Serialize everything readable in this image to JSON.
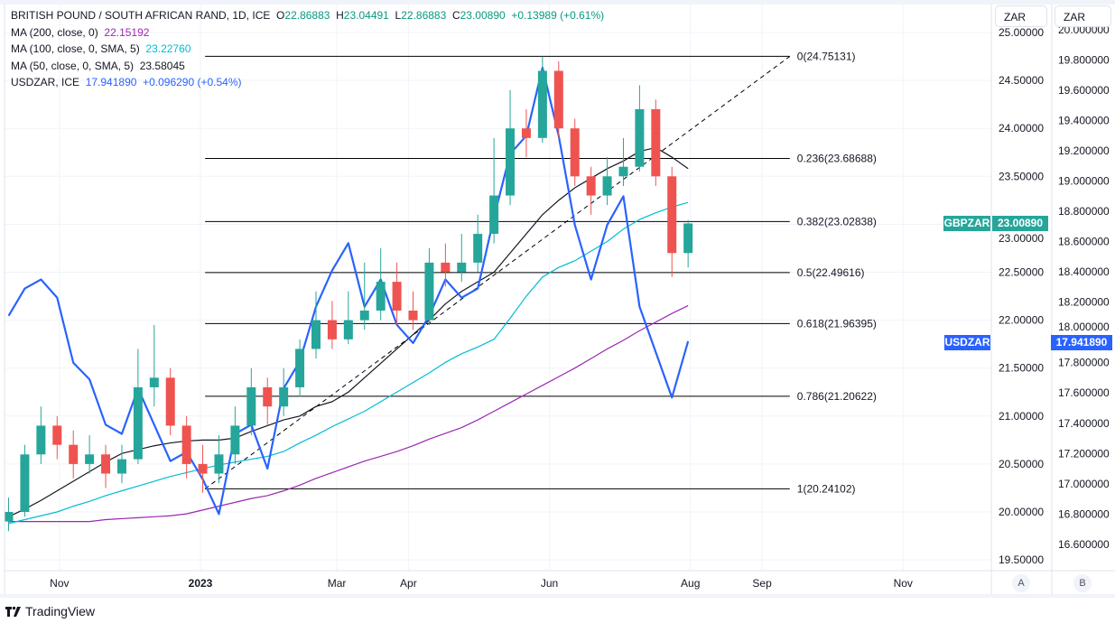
{
  "legend": {
    "symbol": "BRITISH POUND / SOUTH AFRICAN RAND, 1D, ICE",
    "open_label": "O",
    "open": "22.86883",
    "high_label": "H",
    "high": "23.04491",
    "low_label": "L",
    "low": "22.86883",
    "close_label": "C",
    "close": "23.00890",
    "change": "+0.13989 (+0.61%)",
    "ma200_label": "MA (200, close, 0)",
    "ma200_value": "22.15192",
    "ma100_label": "MA (100, close, 0, SMA, 5)",
    "ma100_value": "23.22760",
    "ma50_label": "MA (50, close, 0, SMA, 5)",
    "ma50_value": "23.58045",
    "usdzar_label": "USDZAR, ICE",
    "usdzar_value": "17.941890",
    "usdzar_change": "+0.096290 (+0.54%)"
  },
  "axes": {
    "left_unit": "ZAR",
    "right_unit": "ZAR",
    "left_scale_button": "A",
    "right_scale_button": "B",
    "gbpzar_badge": "GBPZAR",
    "gbpzar_price": "23.00890",
    "usdzar_badge": "USDZAR",
    "usdzar_price": "17.941890"
  },
  "brand": "TradingView",
  "colors": {
    "up": "#26a69a",
    "down": "#ef5350",
    "ma200": "#9c27b0",
    "ma100": "#00bcd4",
    "ma50": "#131722",
    "usdzar": "#2962ff",
    "fib": "#000000"
  },
  "chart_data": {
    "type": "candlestick+line",
    "primary_axis": {
      "ticks": [
        "25.00000",
        "24.50000",
        "24.00000",
        "23.50000",
        "23.00000",
        "22.50000",
        "22.00000",
        "21.50000",
        "21.00000",
        "20.50000",
        "20.00000",
        "19.50000"
      ],
      "range": [
        19.35,
        25.05
      ]
    },
    "secondary_axis": {
      "ticks": [
        "20.000000",
        "19.800000",
        "19.600000",
        "19.400000",
        "19.200000",
        "19.000000",
        "18.800000",
        "18.600000",
        "18.400000",
        "18.200000",
        "18.000000",
        "17.800000",
        "17.600000",
        "17.400000",
        "17.200000",
        "17.000000",
        "16.800000",
        "16.600000"
      ],
      "range": [
        16.44,
        20.03
      ]
    },
    "x_ticks": [
      {
        "date": "2022-11-01",
        "label": "Nov"
      },
      {
        "date": "2023-01-01",
        "label": "2023"
      },
      {
        "date": "2023-03-01",
        "label": "Mar"
      },
      {
        "date": "2023-04-01",
        "label": "Apr"
      },
      {
        "date": "2023-06-01",
        "label": "Jun"
      },
      {
        "date": "2023-08-01",
        "label": "Aug"
      },
      {
        "date": "2023-09-01",
        "label": "Sep"
      },
      {
        "date": "2023-11-01",
        "label": "Nov"
      }
    ],
    "x_range": [
      "2022-10-07",
      "2023-12-13"
    ],
    "grid": true,
    "dates": [
      "2022-10-10",
      "2022-10-17",
      "2022-10-24",
      "2022-10-31",
      "2022-11-07",
      "2022-11-14",
      "2022-11-21",
      "2022-11-28",
      "2022-12-05",
      "2022-12-12",
      "2022-12-19",
      "2022-12-26",
      "2023-01-02",
      "2023-01-09",
      "2023-01-16",
      "2023-01-23",
      "2023-01-30",
      "2023-02-06",
      "2023-02-13",
      "2023-02-20",
      "2023-02-27",
      "2023-03-06",
      "2023-03-13",
      "2023-03-20",
      "2023-03-27",
      "2023-04-03",
      "2023-04-10",
      "2023-04-17",
      "2023-04-24",
      "2023-05-01",
      "2023-05-08",
      "2023-05-15",
      "2023-05-22",
      "2023-05-29",
      "2023-06-05",
      "2023-06-12",
      "2023-06-19",
      "2023-06-26",
      "2023-07-03",
      "2023-07-10",
      "2023-07-17",
      "2023-07-24",
      "2023-07-31"
    ],
    "gbpzar_ohlc": [
      [
        19.9,
        20.15,
        19.8,
        20.0
      ],
      [
        20.0,
        20.7,
        19.95,
        20.6
      ],
      [
        20.6,
        21.1,
        20.5,
        20.9
      ],
      [
        20.9,
        21.0,
        20.55,
        20.7
      ],
      [
        20.7,
        20.85,
        20.35,
        20.5
      ],
      [
        20.5,
        20.8,
        20.4,
        20.6
      ],
      [
        20.6,
        20.7,
        20.25,
        20.4
      ],
      [
        20.4,
        20.7,
        20.3,
        20.55
      ],
      [
        20.55,
        21.7,
        20.5,
        21.3
      ],
      [
        21.3,
        21.95,
        21.1,
        21.4
      ],
      [
        21.4,
        21.5,
        20.8,
        20.9
      ],
      [
        20.9,
        21.0,
        20.35,
        20.5
      ],
      [
        20.5,
        20.7,
        20.2,
        20.4
      ],
      [
        20.4,
        20.8,
        20.3,
        20.6
      ],
      [
        20.6,
        21.1,
        20.5,
        20.9
      ],
      [
        20.9,
        21.5,
        20.8,
        21.3
      ],
      [
        21.3,
        21.4,
        20.9,
        21.1
      ],
      [
        21.1,
        21.5,
        21.0,
        21.3
      ],
      [
        21.3,
        21.8,
        21.2,
        21.7
      ],
      [
        21.7,
        22.3,
        21.6,
        22.0
      ],
      [
        22.0,
        22.2,
        21.7,
        21.8
      ],
      [
        21.8,
        22.3,
        21.75,
        22.0
      ],
      [
        22.0,
        22.6,
        21.9,
        22.1
      ],
      [
        22.1,
        22.75,
        22.0,
        22.4
      ],
      [
        22.4,
        22.6,
        21.95,
        22.1
      ],
      [
        22.1,
        22.3,
        21.9,
        22.0
      ],
      [
        22.0,
        22.75,
        21.95,
        22.6
      ],
      [
        22.6,
        22.8,
        22.35,
        22.5
      ],
      [
        22.5,
        22.9,
        22.4,
        22.6
      ],
      [
        22.6,
        23.1,
        22.5,
        22.9
      ],
      [
        22.9,
        23.9,
        22.8,
        23.3
      ],
      [
        23.3,
        24.4,
        23.2,
        24.0
      ],
      [
        24.0,
        24.2,
        23.7,
        23.9
      ],
      [
        23.9,
        24.75,
        23.85,
        24.6
      ],
      [
        24.6,
        24.7,
        23.9,
        24.0
      ],
      [
        24.0,
        24.1,
        23.4,
        23.5
      ],
      [
        23.5,
        23.6,
        23.1,
        23.3
      ],
      [
        23.3,
        23.7,
        23.2,
        23.5
      ],
      [
        23.5,
        23.9,
        23.4,
        23.6
      ],
      [
        23.6,
        24.45,
        23.55,
        24.2
      ],
      [
        24.2,
        24.3,
        23.4,
        23.5
      ],
      [
        23.5,
        23.6,
        22.45,
        22.7
      ],
      [
        22.7,
        23.04491,
        22.55,
        23.0089
      ]
    ],
    "usdzar": [
      18.11,
      18.29,
      18.35,
      18.23,
      17.8,
      17.69,
      17.39,
      17.33,
      17.63,
      17.39,
      17.15,
      17.21,
      17.03,
      16.8,
      17.33,
      17.39,
      17.1,
      17.63,
      17.81,
      18.17,
      18.41,
      18.59,
      18.17,
      18.35,
      18.05,
      17.93,
      18.11,
      18.35,
      18.23,
      18.29,
      18.76,
      19.18,
      19.3,
      19.75,
      19.3,
      18.71,
      18.35,
      18.71,
      18.9,
      18.17,
      17.87,
      17.57,
      17.94189
    ],
    "ma50": [
      19.95,
      20.03,
      20.12,
      20.22,
      20.32,
      20.42,
      20.52,
      20.61,
      20.65,
      20.69,
      20.72,
      20.74,
      20.75,
      20.75,
      20.77,
      20.84,
      20.9,
      20.96,
      21.0,
      21.1,
      21.15,
      21.25,
      21.4,
      21.55,
      21.7,
      21.85,
      22.0,
      22.17,
      22.3,
      22.4,
      22.5,
      22.7,
      22.9,
      23.1,
      23.25,
      23.38,
      23.48,
      23.58,
      23.66,
      23.76,
      23.8,
      23.7,
      23.58045
    ],
    "ma100": [
      19.88,
      19.92,
      19.96,
      20.0,
      20.06,
      20.11,
      20.17,
      20.22,
      20.27,
      20.32,
      20.37,
      20.41,
      20.45,
      20.49,
      20.52,
      20.55,
      20.58,
      20.63,
      20.72,
      20.8,
      20.89,
      20.97,
      21.05,
      21.15,
      21.25,
      21.35,
      21.45,
      21.56,
      21.65,
      21.72,
      21.8,
      22.02,
      22.25,
      22.45,
      22.55,
      22.62,
      22.72,
      22.82,
      22.95,
      23.05,
      23.12,
      23.18,
      23.2276
    ],
    "ma200": [
      19.9,
      19.9,
      19.9,
      19.9,
      19.9,
      19.9,
      19.92,
      19.93,
      19.94,
      19.95,
      19.96,
      19.98,
      20.02,
      20.06,
      20.1,
      20.14,
      20.17,
      20.22,
      20.28,
      20.35,
      20.41,
      20.47,
      20.53,
      20.58,
      20.63,
      20.69,
      20.76,
      20.82,
      20.88,
      20.96,
      21.05,
      21.14,
      21.23,
      21.32,
      21.41,
      21.5,
      21.6,
      21.7,
      21.79,
      21.89,
      21.98,
      22.07,
      22.15192
    ],
    "fibonacci": {
      "start": {
        "date": "2023-01-03",
        "price": 20.24102
      },
      "end": {
        "date": "2023-09-13",
        "price": 24.75131
      },
      "levels": [
        {
          "ratio": 0,
          "price": 24.75131,
          "label": "0(24.75131)"
        },
        {
          "ratio": 0.236,
          "price": 23.68688,
          "label": "0.236(23.68688)"
        },
        {
          "ratio": 0.382,
          "price": 23.02838,
          "label": "0.382(23.02838)"
        },
        {
          "ratio": 0.5,
          "price": 22.49616,
          "label": "0.5(22.49616)"
        },
        {
          "ratio": 0.618,
          "price": 21.96395,
          "label": "0.618(21.96395)"
        },
        {
          "ratio": 0.786,
          "price": 21.20622,
          "label": "0.786(21.20622)"
        },
        {
          "ratio": 1,
          "price": 20.24102,
          "label": "1(20.24102)"
        }
      ]
    }
  }
}
